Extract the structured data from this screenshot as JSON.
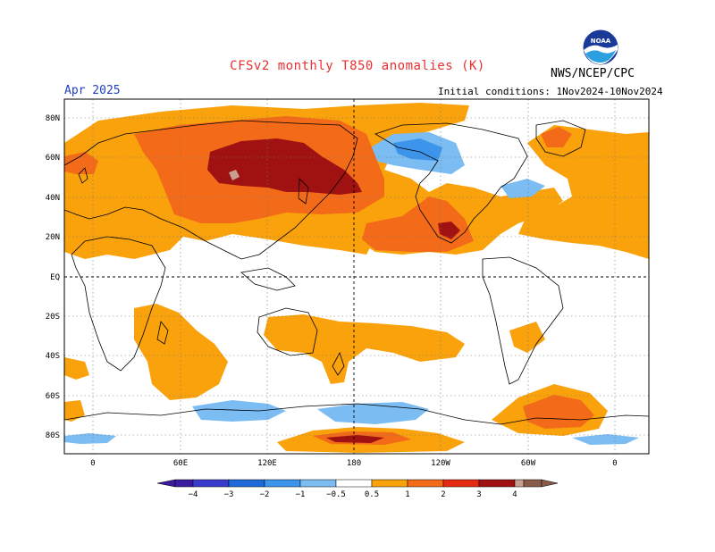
{
  "title": "CFSv2 monthly T850 anomalies (K)",
  "agency": "NWS/NCEP/CPC",
  "month": "Apr 2025",
  "initial_conditions": "Initial conditions: 1Nov2024-10Nov2024",
  "logo_text": "NOAA",
  "map": {
    "lat_labels": [
      "80N",
      "60N",
      "40N",
      "20N",
      "EQ",
      "20S",
      "40S",
      "60S",
      "80S"
    ],
    "lon_labels": [
      "0",
      "60E",
      "120E",
      "180",
      "120W",
      "60W",
      "0"
    ]
  },
  "colorbar": {
    "ticks": [
      "−4",
      "−3",
      "−2",
      "−1",
      "−0.5",
      "0.5",
      "1",
      "2",
      "3",
      "4"
    ],
    "colors": [
      "#3a1a9e",
      "#3a3acc",
      "#1e6ad8",
      "#3c95ea",
      "#7bbcf2",
      "#ffffff",
      "#f9a20c",
      "#f36a18",
      "#e42a10",
      "#a01212",
      "#c8a092",
      "#8a5a48"
    ]
  },
  "colors": {
    "pos_1": "#f9a20c",
    "pos_2": "#f36a18",
    "pos_3": "#e42a10",
    "pos_4": "#a01212",
    "pos_5": "#c8a092",
    "neg_1": "#7bbcf2",
    "neg_2": "#3c95ea",
    "neg_3": "#1e6ad8"
  }
}
